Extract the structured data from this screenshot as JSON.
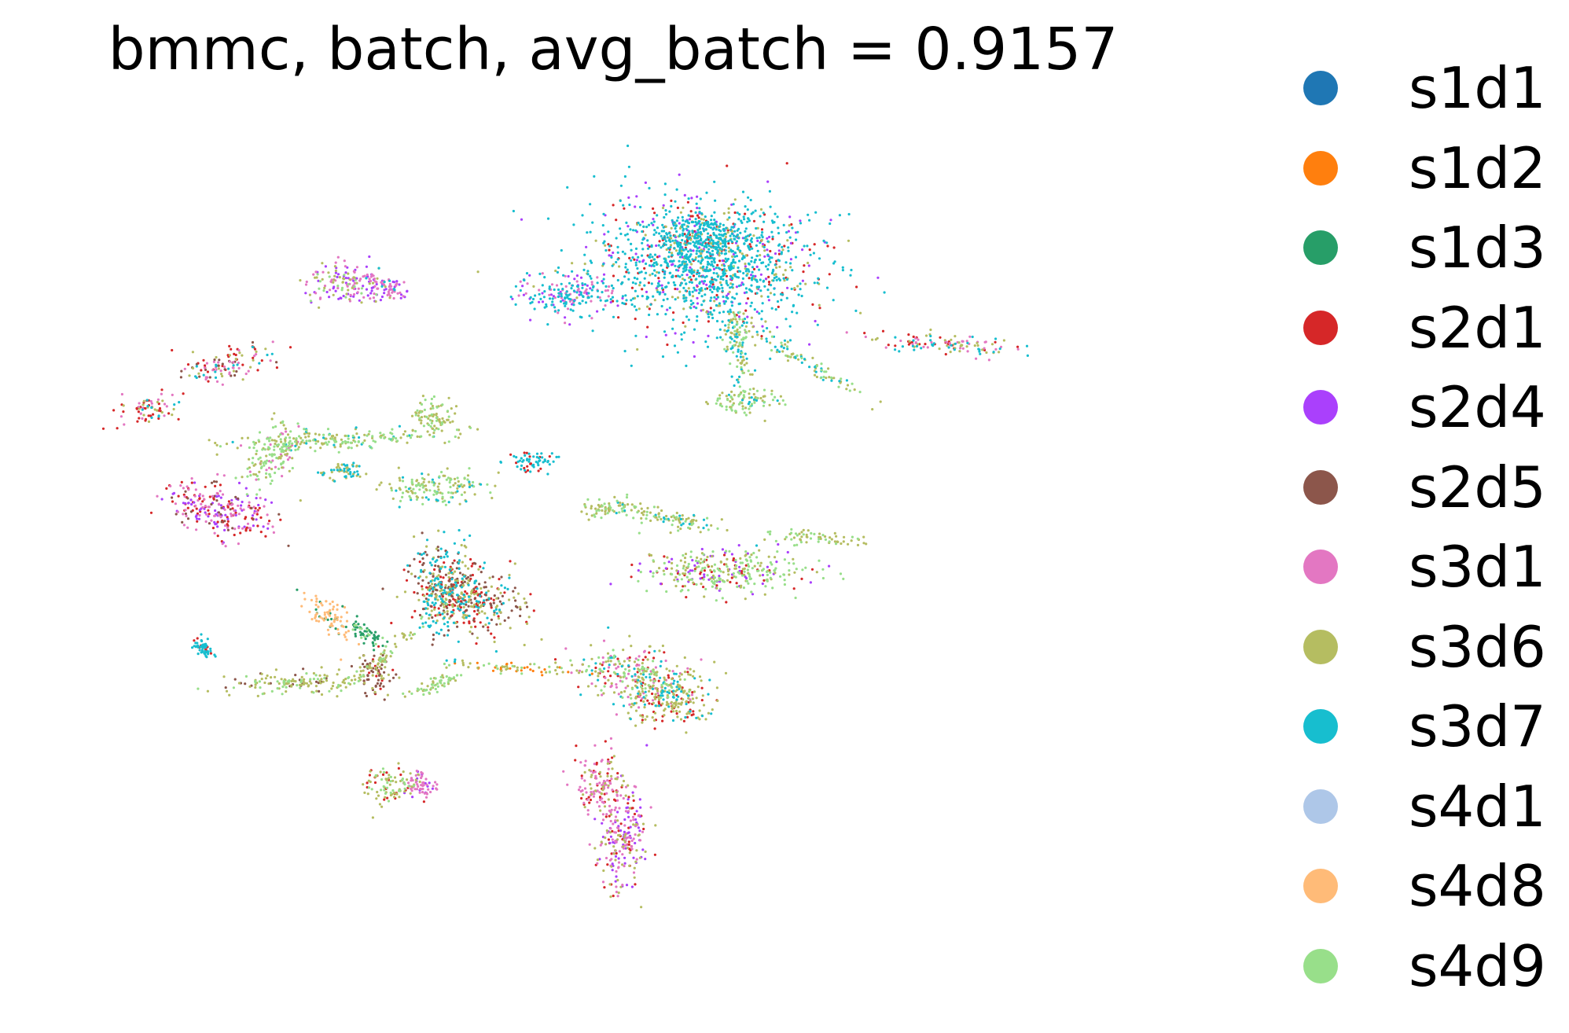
{
  "chart_data": {
    "type": "scatter",
    "title": "bmmc, batch, avg_batch = 0.9157",
    "xlabel": "",
    "ylabel": "",
    "axes_visible": false,
    "grid": false,
    "legend_position": "right",
    "series": [
      {
        "name": "s1d1",
        "color": "#1f77b4"
      },
      {
        "name": "s1d2",
        "color": "#ff7f0e"
      },
      {
        "name": "s1d3",
        "color": "#279e68"
      },
      {
        "name": "s2d1",
        "color": "#d62728"
      },
      {
        "name": "s2d4",
        "color": "#aa40fc"
      },
      {
        "name": "s2d5",
        "color": "#8c564b"
      },
      {
        "name": "s3d1",
        "color": "#e377c2"
      },
      {
        "name": "s3d6",
        "color": "#b5bd61"
      },
      {
        "name": "s3d7",
        "color": "#17becf"
      },
      {
        "name": "s4d1",
        "color": "#aec7e8"
      },
      {
        "name": "s4d8",
        "color": "#ffbb78"
      },
      {
        "name": "s4d9",
        "color": "#98df8a"
      }
    ],
    "clusters": [
      {
        "cx": 0.595,
        "cy": 0.827,
        "w": 0.115,
        "h": 0.088,
        "angle": -5,
        "weights": {
          "s3d7": 5,
          "s2d1": 1,
          "s3d6": 1,
          "s2d4": 1
        }
      },
      {
        "cx": 0.6,
        "cy": 0.862,
        "w": 0.055,
        "h": 0.036,
        "angle": 0,
        "weights": {
          "s3d7": 5,
          "s3d6": 1,
          "s2d1": 1
        }
      },
      {
        "cx": 0.468,
        "cy": 0.79,
        "w": 0.05,
        "h": 0.03,
        "angle": 0,
        "weights": {
          "s3d7": 3,
          "s3d1": 2,
          "s2d4": 1
        }
      },
      {
        "cx": 0.628,
        "cy": 0.728,
        "w": 0.014,
        "h": 0.065,
        "angle": 10,
        "weights": {
          "s3d6": 3,
          "s4d9": 2,
          "s3d7": 2
        }
      },
      {
        "cx": 0.69,
        "cy": 0.705,
        "w": 0.07,
        "h": 0.01,
        "angle": -30,
        "weights": {
          "s3d6": 3,
          "s3d7": 2,
          "s4d9": 2
        }
      },
      {
        "cx": 0.632,
        "cy": 0.657,
        "w": 0.04,
        "h": 0.018,
        "angle": 0,
        "weights": {
          "s3d6": 3,
          "s4d9": 3,
          "s3d7": 1
        }
      },
      {
        "cx": 0.82,
        "cy": 0.728,
        "w": 0.07,
        "h": 0.014,
        "angle": -4,
        "weights": {
          "s3d7": 2,
          "s2d1": 2,
          "s3d1": 2,
          "s3d6": 2
        }
      },
      {
        "cx": 0.262,
        "cy": 0.803,
        "w": 0.04,
        "h": 0.028,
        "angle": 0,
        "weights": {
          "s3d6": 2,
          "s2d4": 2,
          "s3d1": 2,
          "s4d9": 1
        }
      },
      {
        "cx": 0.298,
        "cy": 0.798,
        "w": 0.03,
        "h": 0.02,
        "angle": 0,
        "weights": {
          "s2d4": 3,
          "s3d1": 3,
          "s3d7": 1
        }
      },
      {
        "cx": 0.152,
        "cy": 0.703,
        "w": 0.045,
        "h": 0.02,
        "angle": 10,
        "weights": {
          "s2d1": 2,
          "s3d1": 2,
          "s2d5": 1,
          "s3d7": 1,
          "s3d6": 1
        }
      },
      {
        "cx": 0.262,
        "cy": 0.609,
        "w": 0.11,
        "h": 0.012,
        "angle": 3,
        "weights": {
          "s4d9": 3,
          "s3d6": 3,
          "s3d7": 1
        }
      },
      {
        "cx": 0.196,
        "cy": 0.59,
        "w": 0.024,
        "h": 0.055,
        "angle": -40,
        "weights": {
          "s4d9": 3,
          "s3d6": 2,
          "s3d1": 1
        }
      },
      {
        "cx": 0.145,
        "cy": 0.522,
        "w": 0.055,
        "h": 0.036,
        "angle": -20,
        "weights": {
          "s2d1": 2,
          "s3d1": 2,
          "s2d4": 2,
          "s2d5": 1
        }
      },
      {
        "cx": 0.344,
        "cy": 0.636,
        "w": 0.022,
        "h": 0.032,
        "angle": 0,
        "weights": {
          "s3d6": 3,
          "s4d9": 2
        }
      },
      {
        "cx": 0.344,
        "cy": 0.547,
        "w": 0.054,
        "h": 0.022,
        "angle": 5,
        "weights": {
          "s3d6": 3,
          "s4d9": 3,
          "s3d7": 1
        }
      },
      {
        "cx": 0.258,
        "cy": 0.568,
        "w": 0.02,
        "h": 0.012,
        "angle": 0,
        "weights": {
          "s3d7": 3,
          "s3d6": 2
        }
      },
      {
        "cx": 0.437,
        "cy": 0.582,
        "w": 0.028,
        "h": 0.014,
        "angle": 0,
        "weights": {
          "s3d7": 5,
          "s2d1": 2
        }
      },
      {
        "cx": 0.08,
        "cy": 0.646,
        "w": 0.03,
        "h": 0.02,
        "angle": 10,
        "weights": {
          "s2d1": 2,
          "s3d1": 2,
          "s3d6": 1,
          "s3d7": 1
        }
      },
      {
        "cx": 0.565,
        "cy": 0.511,
        "w": 0.065,
        "h": 0.012,
        "angle": -12,
        "weights": {
          "s3d6": 3,
          "s4d9": 2,
          "s3d7": 1
        }
      },
      {
        "cx": 0.611,
        "cy": 0.444,
        "w": 0.085,
        "h": 0.03,
        "angle": 0,
        "weights": {
          "s4d9": 3,
          "s3d6": 2,
          "s2d1": 1,
          "s2d4": 1
        }
      },
      {
        "cx": 0.7,
        "cy": 0.486,
        "w": 0.05,
        "h": 0.01,
        "angle": -5,
        "weights": {
          "s3d6": 3,
          "s4d9": 2
        }
      },
      {
        "cx": 0.505,
        "cy": 0.522,
        "w": 0.03,
        "h": 0.012,
        "angle": 0,
        "weights": {
          "s3d6": 3,
          "s4d9": 2
        }
      },
      {
        "cx": 0.355,
        "cy": 0.423,
        "w": 0.032,
        "h": 0.065,
        "angle": 0,
        "weights": {
          "s3d7": 3,
          "s3d6": 2,
          "s2d5": 2,
          "s2d1": 1
        }
      },
      {
        "cx": 0.375,
        "cy": 0.413,
        "w": 0.06,
        "h": 0.045,
        "angle": -15,
        "weights": {
          "s3d6": 2,
          "s2d5": 2,
          "s2d1": 2,
          "s3d7": 1
        }
      },
      {
        "cx": 0.246,
        "cy": 0.387,
        "w": 0.03,
        "h": 0.022,
        "angle": -40,
        "weights": {
          "s4d8": 5,
          "s1d3": 1
        }
      },
      {
        "cx": 0.28,
        "cy": 0.368,
        "w": 0.025,
        "h": 0.01,
        "angle": -35,
        "weights": {
          "s1d3": 3,
          "s4d9": 1
        }
      },
      {
        "cx": 0.22,
        "cy": 0.305,
        "w": 0.075,
        "h": 0.015,
        "angle": 2,
        "weights": {
          "s3d6": 3,
          "s4d9": 2,
          "s2d5": 1
        }
      },
      {
        "cx": 0.29,
        "cy": 0.315,
        "w": 0.02,
        "h": 0.032,
        "angle": 0,
        "weights": {
          "s2d5": 3,
          "s3d6": 2,
          "s2d1": 1
        }
      },
      {
        "cx": 0.302,
        "cy": 0.345,
        "w": 0.055,
        "h": 0.008,
        "angle": 40,
        "weights": {
          "s3d6": 3,
          "s4d9": 2
        }
      },
      {
        "cx": 0.345,
        "cy": 0.303,
        "w": 0.03,
        "h": 0.01,
        "angle": 20,
        "weights": {
          "s4d9": 3,
          "s3d6": 2
        }
      },
      {
        "cx": 0.42,
        "cy": 0.324,
        "w": 0.08,
        "h": 0.007,
        "angle": -3,
        "weights": {
          "s3d6": 2,
          "s1d2": 2,
          "s4d9": 1
        }
      },
      {
        "cx": 0.535,
        "cy": 0.313,
        "w": 0.06,
        "h": 0.038,
        "angle": -10,
        "weights": {
          "s3d6": 2,
          "s3d1": 2,
          "s3d7": 1,
          "s2d1": 1,
          "s4d9": 1
        }
      },
      {
        "cx": 0.565,
        "cy": 0.285,
        "w": 0.045,
        "h": 0.035,
        "angle": 0,
        "weights": {
          "s3d6": 3,
          "s2d1": 1,
          "s3d7": 1
        }
      },
      {
        "cx": 0.5,
        "cy": 0.177,
        "w": 0.026,
        "h": 0.045,
        "angle": 0,
        "weights": {
          "s3d1": 3,
          "s2d1": 1,
          "s3d6": 1
        }
      },
      {
        "cx": 0.52,
        "cy": 0.11,
        "w": 0.025,
        "h": 0.07,
        "angle": -8,
        "weights": {
          "s3d1": 3,
          "s3d6": 2,
          "s2d4": 2,
          "s2d1": 1
        }
      },
      {
        "cx": 0.303,
        "cy": 0.177,
        "w": 0.03,
        "h": 0.026,
        "angle": 0,
        "weights": {
          "s3d6": 3,
          "s4d9": 2,
          "s2d1": 1
        }
      },
      {
        "cx": 0.333,
        "cy": 0.178,
        "w": 0.018,
        "h": 0.018,
        "angle": 0,
        "weights": {
          "s3d1": 3,
          "s2d4": 1
        }
      },
      {
        "cx": 0.13,
        "cy": 0.348,
        "w": 0.008,
        "h": 0.015,
        "angle": 30,
        "weights": {
          "s3d7": 3,
          "s2d1": 1
        }
      }
    ]
  }
}
